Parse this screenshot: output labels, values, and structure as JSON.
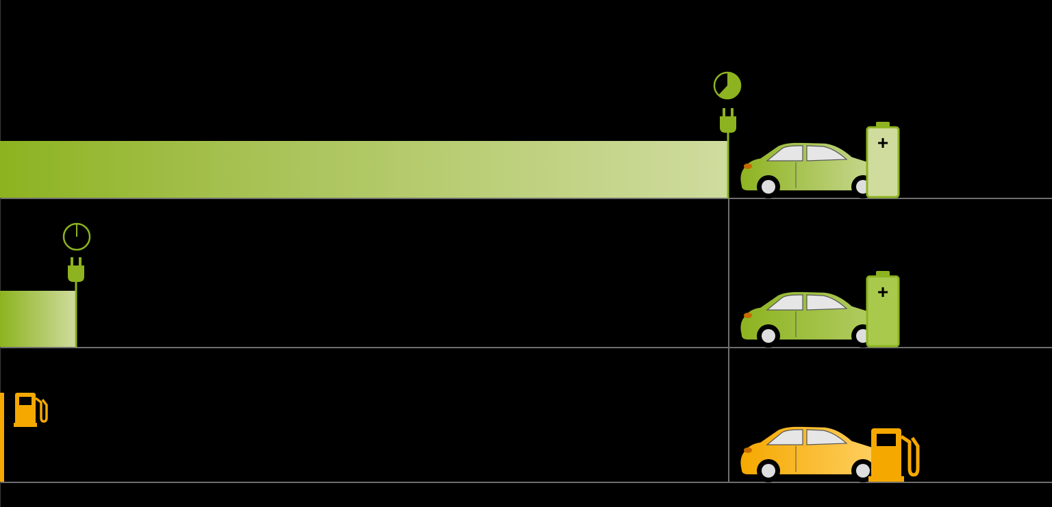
{
  "colors": {
    "background": "#000000",
    "gridline": "#6f6f6f",
    "electric_green": "#8db320",
    "electric_green_light": "#cfdc9e",
    "fuel_orange": "#f5a800",
    "fuel_orange_light": "#ffc93c"
  },
  "rows": [
    {
      "name": "slow-charge-row",
      "bar_fraction": 1.0,
      "bar_style": "green-gradient",
      "timer_icon": "pie-clock-icon",
      "timer_fill_fraction": 0.62,
      "connector_icon": "plug-icon",
      "car_color": "green",
      "station_icon": "battery-icon",
      "station_symbol": "+"
    },
    {
      "name": "fast-charge-row",
      "bar_fraction": 0.104,
      "bar_style": "green-gradient",
      "timer_icon": "pie-clock-icon",
      "timer_fill_fraction": 0.02,
      "connector_icon": "plug-icon",
      "car_color": "green",
      "station_icon": "battery-icon",
      "station_symbol": "+"
    },
    {
      "name": "refuel-row",
      "bar_fraction": 0.006,
      "bar_style": "orange-solid",
      "connector_icon": "fuel-pump-icon",
      "car_color": "orange",
      "station_icon": "fuel-pump-icon"
    }
  ]
}
